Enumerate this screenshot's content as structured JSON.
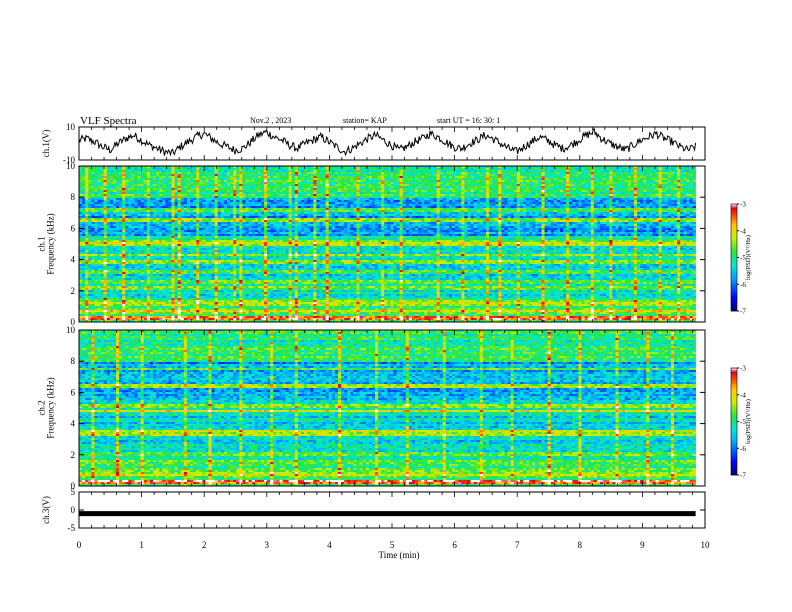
{
  "header": {
    "title": "VLF Spectra",
    "date": "Nov.2 , 2023",
    "station": "station= KAP",
    "start": "start UT = 16: 30: 1"
  },
  "chart_data": [
    {
      "type": "line",
      "panel": "ch1-waveform",
      "ylabel": "ch.1(V)",
      "ylim": [
        -10,
        10
      ],
      "yticks": [
        "10",
        "-10"
      ],
      "xlim": [
        0,
        10
      ],
      "line_color": "#000000",
      "y_sampled": [
        2,
        3,
        1,
        -2,
        -4,
        0,
        3,
        5,
        2,
        -1,
        -3,
        -5,
        -6,
        -2,
        1,
        4,
        6,
        3,
        0,
        -2,
        -4,
        -3,
        1,
        5,
        7,
        4,
        2,
        -1,
        -3,
        0,
        2,
        4,
        1,
        -2,
        -5,
        -3,
        0,
        3,
        5,
        2,
        -1,
        -4,
        -2,
        1,
        3,
        6,
        4,
        1,
        -2,
        -3,
        0,
        2,
        5,
        3,
        0,
        -3,
        -5,
        -2,
        1,
        4,
        2,
        -1,
        -3,
        -1,
        2,
        5,
        7,
        3,
        0,
        -2,
        -4,
        -1,
        2,
        4,
        6,
        3,
        1,
        -2,
        -4,
        -2
      ]
    },
    {
      "type": "heatmap",
      "panel": "ch1-spectrogram",
      "ylabel": "ch.1 Frequency (kHz)",
      "ylim": [
        0,
        10
      ],
      "yticks": [
        "0",
        "2",
        "4",
        "6",
        "8",
        "10"
      ],
      "xlim": [
        0,
        10
      ],
      "colorbar": {
        "label": "log(PSD)(V²/Hz)",
        "range": [
          -7,
          -3
        ],
        "ticks": [
          "-3",
          "-4",
          "-5",
          "-6",
          "-7"
        ]
      },
      "bands": [
        {
          "freq": 0.3,
          "level": -3.4
        },
        {
          "freq": 0.7,
          "level": -4.0
        },
        {
          "freq": 1.1,
          "level": -4.4
        },
        {
          "freq": 2.2,
          "level": -4.6
        },
        {
          "freq": 2.6,
          "level": -4.8
        },
        {
          "freq": 3.2,
          "level": -4.7
        },
        {
          "freq": 3.9,
          "level": -4.5
        },
        {
          "freq": 4.3,
          "level": -4.6
        },
        {
          "freq": 5.0,
          "level": -4.2
        },
        {
          "freq": 5.2,
          "level": -4.4
        },
        {
          "freq": 6.5,
          "level": -4.6
        },
        {
          "freq": 6.6,
          "level": -4.8
        },
        {
          "freq": 7.2,
          "level": -4.7
        }
      ],
      "bursts_min": [
        0.1,
        0.4,
        0.7,
        1.1,
        1.5,
        1.6,
        1.9,
        2.2,
        2.5,
        2.6,
        3.0,
        3.4,
        3.5,
        3.8,
        4.0,
        4.5,
        4.9,
        5.2,
        5.8,
        6.2,
        6.6,
        6.8,
        7.1,
        7.5,
        7.9,
        8.3,
        8.6,
        9.0,
        9.4,
        9.7
      ]
    },
    {
      "type": "heatmap",
      "panel": "ch2-spectrogram",
      "ylabel": "ch.2 Frequency (kHz)",
      "ylim": [
        0,
        10
      ],
      "yticks": [
        "0",
        "2",
        "4",
        "6",
        "8",
        "10"
      ],
      "xlim": [
        0,
        10
      ],
      "colorbar": {
        "label": "log(PSD)(V²/Hz)",
        "range": [
          -7,
          -3
        ],
        "ticks": [
          "-3",
          "-4",
          "-5",
          "-6",
          "-7"
        ]
      },
      "bands": [
        {
          "freq": 0.3,
          "level": -3.4
        },
        {
          "freq": 0.8,
          "level": -4.2
        },
        {
          "freq": 1.5,
          "level": -4.6
        },
        {
          "freq": 2.0,
          "level": -4.8
        },
        {
          "freq": 3.3,
          "level": -4.3
        },
        {
          "freq": 3.5,
          "level": -4.4
        },
        {
          "freq": 4.8,
          "level": -4.2
        },
        {
          "freq": 5.1,
          "level": -4.3
        },
        {
          "freq": 6.4,
          "level": -4.5
        },
        {
          "freq": 7.5,
          "level": -4.8
        }
      ],
      "bursts_min": [
        0.2,
        0.6,
        1.0,
        1.7,
        2.1,
        2.6,
        3.1,
        3.5,
        4.2,
        4.8,
        5.3,
        5.9,
        6.5,
        7.0,
        7.6,
        8.1,
        8.7,
        9.2,
        9.6
      ]
    },
    {
      "type": "line",
      "panel": "ch3-waveform",
      "ylabel": "ch.3(V)",
      "ylim": [
        -5,
        5
      ],
      "yticks": [
        "5",
        "0",
        "-5"
      ],
      "xlabel": "Time (min)",
      "xlim": [
        0,
        10
      ],
      "xticks": [
        "0",
        "1",
        "2",
        "3",
        "4",
        "5",
        "6",
        "7",
        "8",
        "9",
        "10"
      ],
      "level": -1,
      "line_color": "#000000"
    }
  ]
}
